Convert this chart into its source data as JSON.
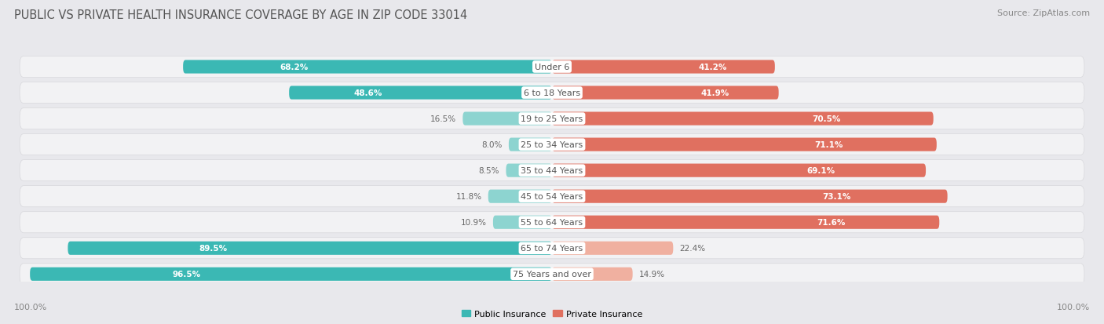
{
  "title": "PUBLIC VS PRIVATE HEALTH INSURANCE COVERAGE BY AGE IN ZIP CODE 33014",
  "source": "Source: ZipAtlas.com",
  "categories": [
    "Under 6",
    "6 to 18 Years",
    "19 to 25 Years",
    "25 to 34 Years",
    "35 to 44 Years",
    "45 to 54 Years",
    "55 to 64 Years",
    "65 to 74 Years",
    "75 Years and over"
  ],
  "public_values": [
    68.2,
    48.6,
    16.5,
    8.0,
    8.5,
    11.8,
    10.9,
    89.5,
    96.5
  ],
  "private_values": [
    41.2,
    41.9,
    70.5,
    71.1,
    69.1,
    73.1,
    71.6,
    22.4,
    14.9
  ],
  "public_color_high": "#3bb8b4",
  "public_color_low": "#8dd4d0",
  "private_color_high": "#e07060",
  "private_color_low": "#f0b0a0",
  "bg_color": "#e8e8ec",
  "row_bg_color": "#f2f2f4",
  "row_border_color": "#d8d8dc",
  "center_bg": "#ffffff",
  "title_color": "#555555",
  "source_color": "#888888",
  "label_color": "#555555",
  "value_color_inside": "#ffffff",
  "value_color_outside": "#666666",
  "footer_color": "#888888",
  "legend_public": "Public Insurance",
  "legend_private": "Private Insurance",
  "title_fontsize": 10.5,
  "source_fontsize": 8,
  "label_fontsize": 8,
  "value_fontsize": 7.5,
  "footer_fontsize": 8,
  "pub_threshold": 30,
  "priv_threshold": 30
}
